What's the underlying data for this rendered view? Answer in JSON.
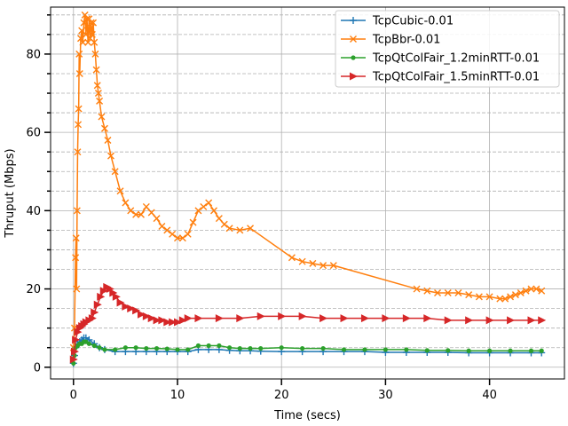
{
  "chart_data": {
    "type": "line",
    "title": "",
    "xlabel": "Time (secs)",
    "ylabel": "Thruput (Mbps)",
    "xlim": [
      -2.2,
      47.2
    ],
    "ylim": [
      -3,
      92
    ],
    "x_ticks": [
      0,
      10,
      20,
      30,
      40
    ],
    "y_ticks": [
      0,
      20,
      40,
      60,
      80
    ],
    "y_minor_ticks": [
      5,
      10,
      15,
      25,
      30,
      35,
      45,
      50,
      55,
      65,
      70,
      75,
      85,
      90
    ],
    "grid": true,
    "legend_position": "top-right",
    "series": [
      {
        "name": "TcpCubic-0.01",
        "color": "#1f77b4",
        "marker": "plus",
        "x": [
          0,
          0.1,
          0.2,
          0.4,
          0.6,
          0.8,
          1.0,
          1.2,
          1.5,
          2,
          2.5,
          3,
          4,
          5,
          6,
          7,
          8,
          9,
          10,
          11,
          12,
          13,
          14,
          15,
          16,
          17,
          18,
          20,
          22,
          24,
          26,
          28,
          30,
          32,
          34,
          36,
          38,
          40,
          42,
          44,
          45
        ],
        "y": [
          1,
          3,
          5,
          6,
          6.5,
          7,
          7.5,
          7.5,
          7,
          6,
          5,
          4.5,
          4,
          4,
          4,
          4,
          4,
          4,
          4,
          4,
          4.5,
          4.5,
          4.5,
          4.3,
          4.2,
          4.2,
          4.1,
          4,
          4,
          4,
          4,
          4,
          3.8,
          3.8,
          3.8,
          3.8,
          3.7,
          3.7,
          3.7,
          3.7,
          3.7
        ]
      },
      {
        "name": "TcpBbr-0.01",
        "color": "#ff7f0e",
        "marker": "x",
        "x": [
          0,
          0.1,
          0.2,
          0.25,
          0.3,
          0.35,
          0.4,
          0.45,
          0.5,
          0.55,
          0.6,
          0.7,
          0.8,
          0.9,
          1.0,
          1.1,
          1.2,
          1.3,
          1.4,
          1.5,
          1.6,
          1.7,
          1.8,
          1.9,
          2.0,
          2.1,
          2.2,
          2.3,
          2.4,
          2.5,
          2.7,
          3.0,
          3.3,
          3.6,
          4.0,
          4.5,
          5.0,
          5.5,
          6.0,
          6.5,
          7.0,
          7.5,
          8.0,
          8.5,
          9.0,
          9.5,
          10.0,
          10.5,
          11.0,
          11.5,
          12.0,
          12.5,
          13.0,
          13.5,
          14.0,
          14.5,
          15.0,
          16.0,
          17.0,
          21.0,
          22.0,
          23.0,
          24.0,
          25.0,
          33.0,
          34.0,
          35.0,
          36.0,
          37.0,
          38.0,
          39.0,
          40.0,
          41.0,
          41.5,
          42.0,
          42.5,
          43.0,
          43.5,
          44.0,
          44.5,
          45.0
        ],
        "y": [
          5,
          10,
          28,
          33,
          20,
          40,
          55,
          62,
          66,
          80,
          75,
          84,
          86,
          83,
          88,
          90,
          85,
          89,
          83,
          89,
          84,
          88,
          85,
          88,
          83,
          80,
          76,
          72,
          70,
          68,
          64,
          61,
          58,
          54,
          50,
          45,
          42,
          40,
          39,
          39,
          41,
          39.5,
          38,
          36,
          35,
          34,
          33,
          33,
          34,
          37,
          40,
          41,
          42,
          40,
          38,
          36.5,
          35.5,
          35,
          35.5,
          28,
          27,
          26.5,
          26,
          26,
          20,
          19.5,
          19,
          19,
          19,
          18.5,
          18,
          18,
          17.5,
          17.5,
          18,
          18.5,
          19,
          19.5,
          20,
          20,
          19.5
        ]
      },
      {
        "name": "TcpQtColFair_1.2minRTT-0.01",
        "color": "#2ca02c",
        "marker": "dot",
        "x": [
          0,
          0.1,
          0.2,
          0.4,
          0.6,
          0.8,
          1.0,
          1.2,
          1.5,
          2,
          2.5,
          3,
          4,
          5,
          6,
          7,
          8,
          9,
          10,
          11,
          12,
          13,
          14,
          15,
          16,
          17,
          18,
          20,
          22,
          24,
          26,
          28,
          30,
          32,
          34,
          36,
          38,
          40,
          42,
          44,
          45
        ],
        "y": [
          1,
          3,
          5,
          5.5,
          6,
          6,
          6.5,
          6.5,
          6,
          5.5,
          5,
          4.5,
          4.5,
          5,
          5,
          4.8,
          4.8,
          4.7,
          4.5,
          4.5,
          5.5,
          5.5,
          5.5,
          5,
          4.8,
          4.8,
          4.8,
          5,
          4.8,
          4.8,
          4.5,
          4.5,
          4.5,
          4.5,
          4.3,
          4.3,
          4.2,
          4.2,
          4.2,
          4.2,
          4.2
        ]
      },
      {
        "name": "TcpQtColFair_1.5minRTT-0.01",
        "color": "#d62728",
        "marker": "triangle-right",
        "x": [
          0,
          0.1,
          0.2,
          0.4,
          0.6,
          0.8,
          1.0,
          1.2,
          1.5,
          1.8,
          2.0,
          2.3,
          2.6,
          2.9,
          3.2,
          3.5,
          3.8,
          4.1,
          4.5,
          5.0,
          5.5,
          6.0,
          6.5,
          7.0,
          7.5,
          8.0,
          8.5,
          9.0,
          9.5,
          10.0,
          10.5,
          11.0,
          12.0,
          14.0,
          16.0,
          18.0,
          20.0,
          22.0,
          24.0,
          26.0,
          28.0,
          30.0,
          32.0,
          34.0,
          36.0,
          38.0,
          40.0,
          42.0,
          44.0,
          45.0
        ],
        "y": [
          2,
          4,
          7,
          9,
          10,
          10.5,
          11,
          11.5,
          12,
          12.5,
          14,
          16,
          18,
          19.5,
          20.5,
          20,
          19,
          18,
          16.5,
          15.5,
          15,
          14.5,
          13.5,
          13,
          12.5,
          12,
          12,
          11.5,
          11.5,
          11.5,
          12,
          12.5,
          12.5,
          12.5,
          12.5,
          13,
          13,
          13,
          12.5,
          12.5,
          12.5,
          12.5,
          12.5,
          12.5,
          12,
          12,
          12,
          12,
          12,
          12
        ]
      }
    ]
  }
}
